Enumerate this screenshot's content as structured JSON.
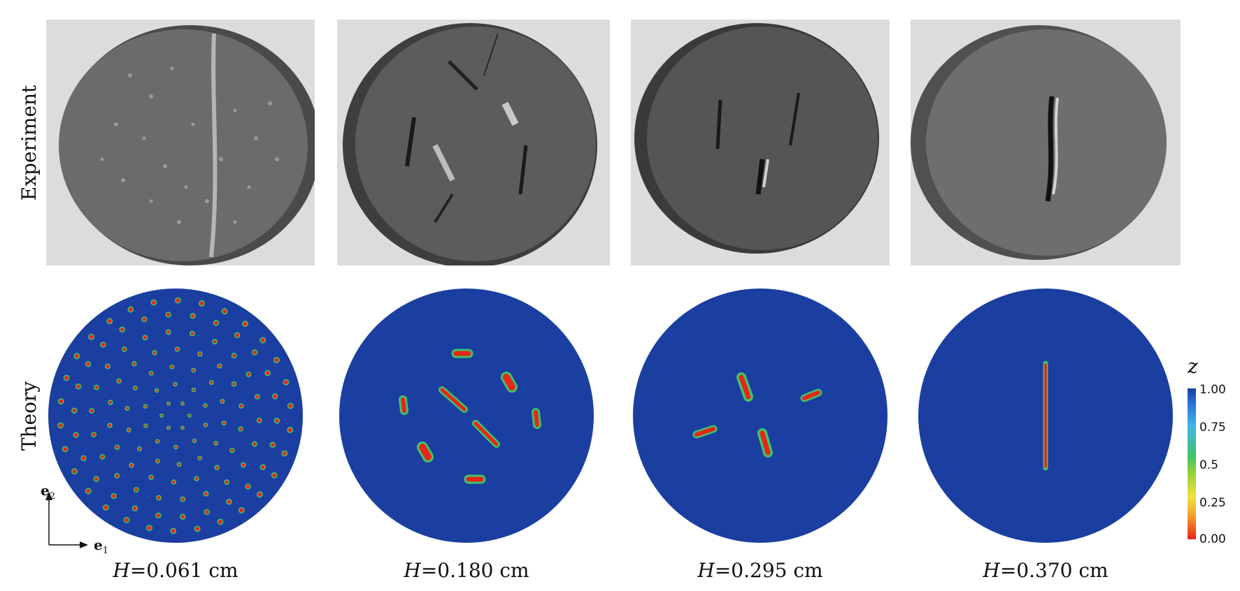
{
  "rows": {
    "experiment_label": "Experiment",
    "theory_label": "Theory"
  },
  "captions": [
    {
      "var": "H",
      "text": "=0.061 cm"
    },
    {
      "var": "H",
      "text": "=0.180 cm"
    },
    {
      "var": "H",
      "text": "=0.295 cm"
    },
    {
      "var": "H",
      "text": "=0.370 cm"
    }
  ],
  "colorbar": {
    "title": "z",
    "ticks": [
      "1.00",
      "0.75",
      "0.5",
      "0.25",
      "0.00"
    ]
  },
  "axes": {
    "e2": "e",
    "e2_sub": "2",
    "e1": "e",
    "e1_sub": "1"
  },
  "colors": {
    "intact_blue": "#1a3fa0",
    "fracture_red": "#e8251a",
    "halo_green": "#3fc46a",
    "photo_gray": "#5a5a5a"
  }
}
